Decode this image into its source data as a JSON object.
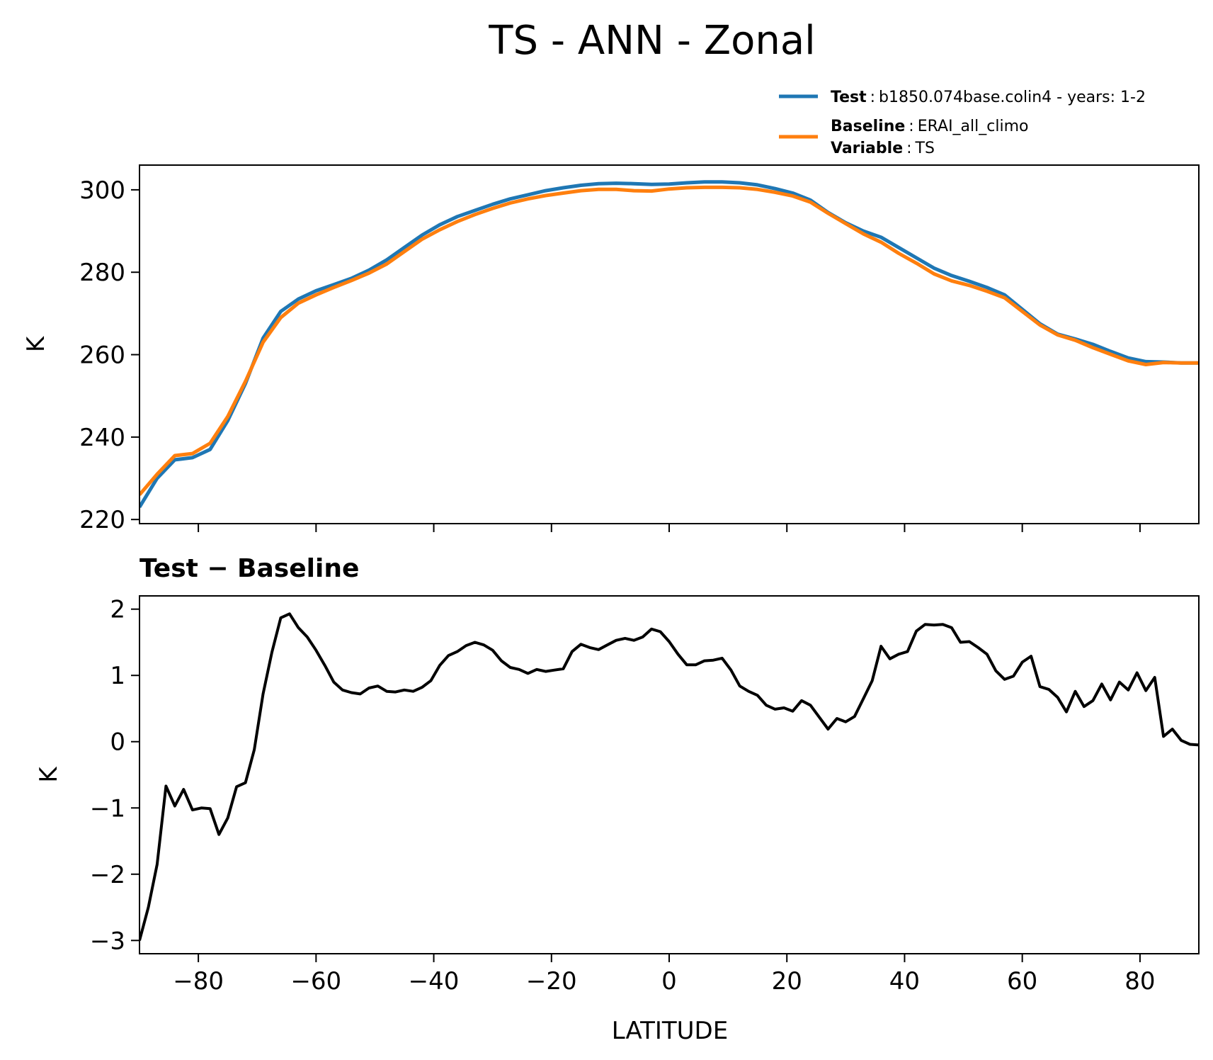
{
  "chart_data": [
    {
      "type": "line",
      "title": "TS - ANN - Zonal",
      "xlabel": "",
      "ylabel": "K",
      "xlim": [
        -90,
        90
      ],
      "ylim": [
        219,
        306
      ],
      "xticks": [
        -80,
        -60,
        -40,
        -20,
        0,
        20,
        40,
        60,
        80
      ],
      "xtick_labels_shown": false,
      "yticks": [
        220,
        240,
        260,
        280,
        300
      ],
      "ytick_labels": [
        "220",
        "240",
        "260",
        "280",
        "300"
      ],
      "grid": false,
      "legend": {
        "placement": "above top-right",
        "entries": [
          {
            "key": "Test",
            "sep": ":",
            "text": "b1850.074base.colin4 - years: 1-2"
          },
          {
            "key": "Baseline",
            "sep": ":",
            "text": "ERAI_all_climo"
          },
          {
            "key": "Variable",
            "sep": ":",
            "text": "TS"
          }
        ]
      },
      "x": [
        -90,
        -87,
        -84,
        -81,
        -78,
        -75,
        -72,
        -69,
        -66,
        -63,
        -60,
        -57,
        -54,
        -51,
        -48,
        -45,
        -42,
        -39,
        -36,
        -33,
        -30,
        -27,
        -24,
        -21,
        -18,
        -15,
        -12,
        -9,
        -6,
        -3,
        0,
        3,
        6,
        9,
        12,
        15,
        18,
        21,
        24,
        27,
        30,
        33,
        36,
        39,
        42,
        45,
        48,
        51,
        54,
        57,
        60,
        63,
        66,
        69,
        72,
        75,
        78,
        81,
        84,
        87,
        90
      ],
      "series": [
        {
          "color": "#1f77b4",
          "values": [
            223,
            230,
            234.5,
            235,
            237,
            244,
            253,
            264,
            270.5,
            273.5,
            275.5,
            277,
            278.5,
            280.5,
            283,
            286,
            289,
            291.5,
            293.5,
            295,
            296.5,
            297.8,
            298.8,
            299.8,
            300.5,
            301.1,
            301.5,
            301.6,
            301.5,
            301.3,
            301.4,
            301.7,
            301.9,
            301.9,
            301.7,
            301.2,
            300.3,
            299.2,
            297.5,
            294.5,
            292,
            290,
            288.5,
            286,
            283.5,
            281,
            279.2,
            277.8,
            276.3,
            274.5,
            271,
            267.5,
            265,
            263.8,
            262.5,
            260.8,
            259.2,
            258.3,
            258.2,
            258,
            258
          ]
        },
        {
          "color": "#ff7f0e",
          "values": [
            226,
            231,
            235.5,
            236,
            238.5,
            245,
            253.5,
            263,
            269,
            272.5,
            274.5,
            276.3,
            278,
            279.8,
            282,
            285,
            288,
            290.3,
            292.3,
            294,
            295.5,
            296.8,
            297.8,
            298.6,
            299.2,
            299.8,
            300.1,
            300.1,
            299.8,
            299.7,
            300.2,
            300.5,
            300.6,
            300.6,
            300.5,
            300.1,
            299.4,
            298.5,
            297,
            294.3,
            291.8,
            289.3,
            287.3,
            284.6,
            282.2,
            279.6,
            277.9,
            276.8,
            275.4,
            273.8,
            270.5,
            267.2,
            264.8,
            263.5,
            261.7,
            260.1,
            258.5,
            257.6,
            258.1,
            258,
            258
          ]
        }
      ]
    },
    {
      "type": "line",
      "title": "Test − Baseline",
      "xlabel": "LATITUDE",
      "ylabel": "K",
      "xlim": [
        -90,
        90
      ],
      "ylim": [
        -3.2,
        2.2
      ],
      "xticks": [
        -80,
        -60,
        -40,
        -20,
        0,
        20,
        40,
        60,
        80
      ],
      "xtick_labels": [
        "−80",
        "−60",
        "−40",
        "−20",
        "0",
        "20",
        "40",
        "60",
        "80"
      ],
      "yticks": [
        -3,
        -2,
        -1,
        0,
        1,
        2
      ],
      "ytick_labels": [
        "−3",
        "−2",
        "−1",
        "0",
        "1",
        "2"
      ],
      "grid": false,
      "x": [
        -90,
        -88.5,
        -87,
        -85.5,
        -84,
        -82.5,
        -81,
        -79.5,
        -78,
        -76.5,
        -75,
        -73.5,
        -72,
        -70.5,
        -69,
        -67.5,
        -66,
        -64.5,
        -63,
        -61.5,
        -60,
        -58.5,
        -57,
        -55.5,
        -54,
        -52.5,
        -51,
        -49.5,
        -48,
        -46.5,
        -45,
        -43.5,
        -42,
        -40.5,
        -39,
        -37.5,
        -36,
        -34.5,
        -33,
        -31.5,
        -30,
        -28.5,
        -27,
        -25.5,
        -24,
        -22.5,
        -21,
        -19.5,
        -18,
        -16.5,
        -15,
        -13.5,
        -12,
        -10.5,
        -9,
        -7.5,
        -6,
        -4.5,
        -3,
        -1.5,
        0,
        1.5,
        3,
        4.5,
        6,
        7.5,
        9,
        10.5,
        12,
        13.5,
        15,
        16.5,
        18,
        19.5,
        21,
        22.5,
        24,
        25.5,
        27,
        28.5,
        30,
        31.5,
        33,
        34.5,
        36,
        37.5,
        39,
        40.5,
        42,
        43.5,
        45,
        46.5,
        48,
        49.5,
        51,
        52.5,
        54,
        55.5,
        57,
        58.5,
        60,
        61.5,
        63,
        64.5,
        66,
        67.5,
        69,
        70.5,
        72,
        73.5,
        75,
        76.5,
        78,
        79.5,
        81,
        82.5,
        84,
        85.5,
        87,
        88.5,
        90
      ],
      "series": [
        {
          "color": "#000000",
          "values": [
            -3.0,
            -2.5,
            -1.85,
            -0.67,
            -0.97,
            -0.72,
            -1.03,
            -1.0,
            -1.01,
            -1.4,
            -1.15,
            -0.68,
            -0.62,
            -0.12,
            0.72,
            1.35,
            1.87,
            1.93,
            1.72,
            1.58,
            1.38,
            1.15,
            0.9,
            0.78,
            0.74,
            0.72,
            0.81,
            0.84,
            0.76,
            0.75,
            0.78,
            0.76,
            0.82,
            0.92,
            1.15,
            1.3,
            1.36,
            1.45,
            1.5,
            1.46,
            1.38,
            1.22,
            1.12,
            1.09,
            1.03,
            1.09,
            1.06,
            1.08,
            1.1,
            1.36,
            1.47,
            1.42,
            1.39,
            1.46,
            1.53,
            1.56,
            1.53,
            1.58,
            1.7,
            1.66,
            1.51,
            1.32,
            1.16,
            1.16,
            1.22,
            1.23,
            1.26,
            1.08,
            0.84,
            0.76,
            0.7,
            0.55,
            0.49,
            0.51,
            0.46,
            0.62,
            0.55,
            0.37,
            0.19,
            0.35,
            0.3,
            0.38,
            0.65,
            0.92,
            1.44,
            1.25,
            1.32,
            1.36,
            1.67,
            1.77,
            1.76,
            1.77,
            1.72,
            1.5,
            1.51,
            1.42,
            1.32,
            1.07,
            0.94,
            0.99,
            1.2,
            1.29,
            0.83,
            0.79,
            0.67,
            0.45,
            0.76,
            0.53,
            0.62,
            0.87,
            0.63,
            0.9,
            0.78,
            1.04,
            0.77,
            0.97,
            0.08,
            0.19,
            0.02,
            -0.04,
            -0.05
          ]
        }
      ]
    }
  ]
}
